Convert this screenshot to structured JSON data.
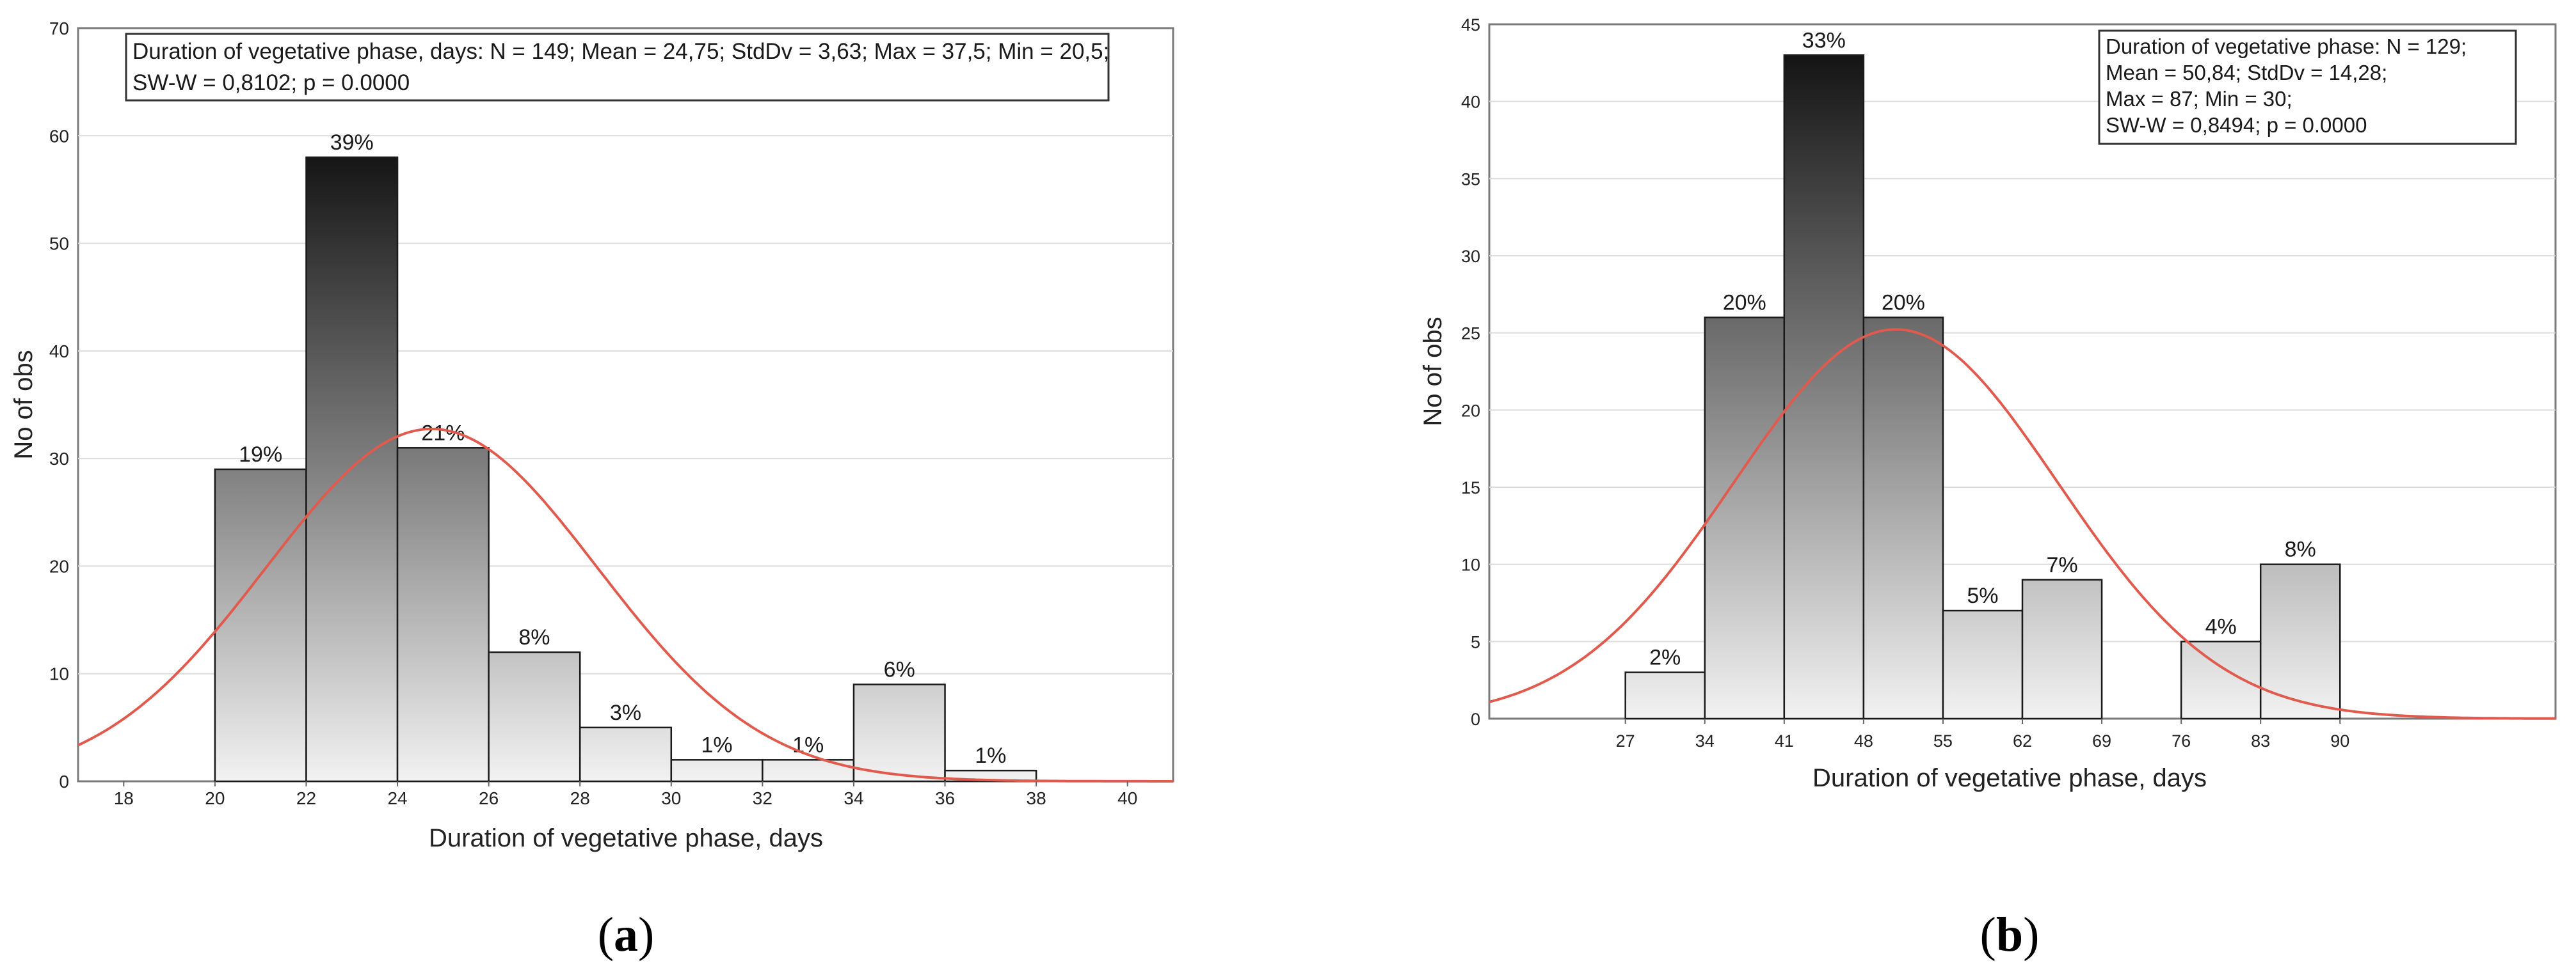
{
  "panels": [
    {
      "label_open": "(",
      "label_letter": "a",
      "label_close": ")",
      "stats_box": {
        "line1": "Duration of vegetative phase, days:   N = 149; Mean = 24,75; StdDv = 3,63; Max = 37,5; Min = 20,5;",
        "line2": "SW-W = 0,8102; p = 0.0000"
      }
    },
    {
      "label_open": "(",
      "label_letter": "b",
      "label_close": ")",
      "stats_box": {
        "line1": "Duration of vegetative phase: N = 129;",
        "line2": "Mean = 50,84; StdDv = 14,28;",
        "line3": "Max = 87; Min = 30;",
        "line4": "SW-W = 0,8494; p = 0.0000"
      }
    }
  ],
  "chart_data": [
    {
      "type": "bar",
      "subtype": "histogram",
      "xlabel": "Duration of vegetative phase, days",
      "ylabel": "No of obs",
      "xlim": [
        17,
        41
      ],
      "ylim": [
        0,
        70
      ],
      "x_ticks": [
        18,
        20,
        22,
        24,
        26,
        28,
        30,
        32,
        34,
        36,
        38,
        40
      ],
      "y_ticks": [
        0,
        10,
        20,
        30,
        40,
        50,
        60,
        70
      ],
      "grid": true,
      "bins": [
        {
          "from": 20,
          "to": 22,
          "value": 29,
          "label": "19%"
        },
        {
          "from": 22,
          "to": 24,
          "value": 58,
          "label": "39%"
        },
        {
          "from": 24,
          "to": 26,
          "value": 31,
          "label": "21%"
        },
        {
          "from": 26,
          "to": 28,
          "value": 12,
          "label": "8%"
        },
        {
          "from": 28,
          "to": 30,
          "value": 5,
          "label": "3%"
        },
        {
          "from": 30,
          "to": 32,
          "value": 2,
          "label": "1%"
        },
        {
          "from": 32,
          "to": 34,
          "value": 2,
          "label": "1%"
        },
        {
          "from": 34,
          "to": 36,
          "value": 9,
          "label": "6%"
        },
        {
          "from": 36,
          "to": 38,
          "value": 1,
          "label": "1%"
        }
      ],
      "normal_curve": {
        "mean": 24.75,
        "sd": 3.63,
        "n": 149,
        "bin_width": 2,
        "color": "#e05a4e"
      }
    },
    {
      "type": "bar",
      "subtype": "histogram",
      "xlabel": "Duration of vegetative phase, days",
      "ylabel": "No of obs",
      "xlim": [
        15,
        109
      ],
      "ylim": [
        0,
        45
      ],
      "x_ticks": [
        27,
        34,
        41,
        48,
        55,
        62,
        69,
        76,
        83,
        90
      ],
      "y_ticks": [
        0,
        5,
        10,
        15,
        20,
        25,
        30,
        35,
        40,
        45
      ],
      "grid": true,
      "bins": [
        {
          "from": 27,
          "to": 34,
          "value": 3,
          "label": "2%"
        },
        {
          "from": 34,
          "to": 41,
          "value": 26,
          "label": "20%"
        },
        {
          "from": 41,
          "to": 48,
          "value": 43,
          "label": "33%"
        },
        {
          "from": 48,
          "to": 55,
          "value": 26,
          "label": "20%"
        },
        {
          "from": 55,
          "to": 62,
          "value": 7,
          "label": "5%"
        },
        {
          "from": 62,
          "to": 69,
          "value": 9,
          "label": "7%"
        },
        {
          "from": 76,
          "to": 83,
          "value": 5,
          "label": "4%"
        },
        {
          "from": 83,
          "to": 90,
          "value": 10,
          "label": "8%"
        }
      ],
      "normal_curve": {
        "mean": 50.84,
        "sd": 14.28,
        "n": 129,
        "bin_width": 7,
        "color": "#e05a4e"
      }
    }
  ]
}
